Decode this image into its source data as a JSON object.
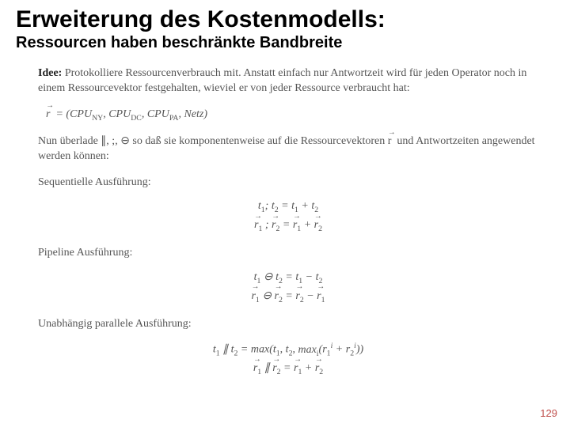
{
  "title": "Erweiterung des Kostenmodells:",
  "subtitle": "Ressourcen haben beschränkte Bandbreite",
  "idea_lead": "Idee:",
  "idea_text": " Protokolliere Ressourcenverbrauch mit. Anstatt einfach nur Antwortzeit wird für jeden Operator noch in einem Ressourcevektor festgehalten, wieviel er von jeder Ressource verbraucht hat:",
  "vector_def_prefix": "r",
  "vector_def_terms": [
    "CPU",
    "CPU",
    "CPU",
    "Netz"
  ],
  "vector_def_subs": [
    "NY",
    "DC",
    "PA",
    ""
  ],
  "overload_text_a": "Nun überlade ∥, ;, ⊖ so daß sie komponentenweise auf die Ressourcevektoren ",
  "overload_text_b": " und Antwortzeiten angewendet werden können:",
  "seq_label": "Sequentielle Ausführung:",
  "seq_f1_a": "t",
  "seq_f1_b": "; t",
  "seq_f1_c": " = t",
  "seq_f1_d": " + t",
  "seq_f2_b": " ; ",
  "seq_f2_c": " = ",
  "seq_f2_d": " + ",
  "pipe_label": "Pipeline Ausführung:",
  "pipe_f1_a": "t",
  "pipe_f1_b": " ⊖ t",
  "pipe_f1_c": " = t",
  "pipe_f1_d": " − t",
  "pipe_f2_b": " ⊖ ",
  "pipe_f2_c": " = ",
  "pipe_f2_d": " − ",
  "par_label": "Unabhängig parallele Ausführung:",
  "par_f1": "t₁ ∥ t₂ = max(t₁, t₂, maxᵢ(r₁ⁱ + r₂ⁱ))",
  "par_f2_b": " ∥ ",
  "par_f2_c": " = ",
  "par_f2_d": " + ",
  "page_number": "129",
  "colors": {
    "title": "#000000",
    "body_text": "#555555",
    "page_num": "#c0504d",
    "background": "#ffffff"
  },
  "fonts": {
    "title_family": "Impact",
    "body_family": "Georgia",
    "title_size_pt": 30,
    "subtitle_size_pt": 20,
    "body_size_pt": 14
  }
}
